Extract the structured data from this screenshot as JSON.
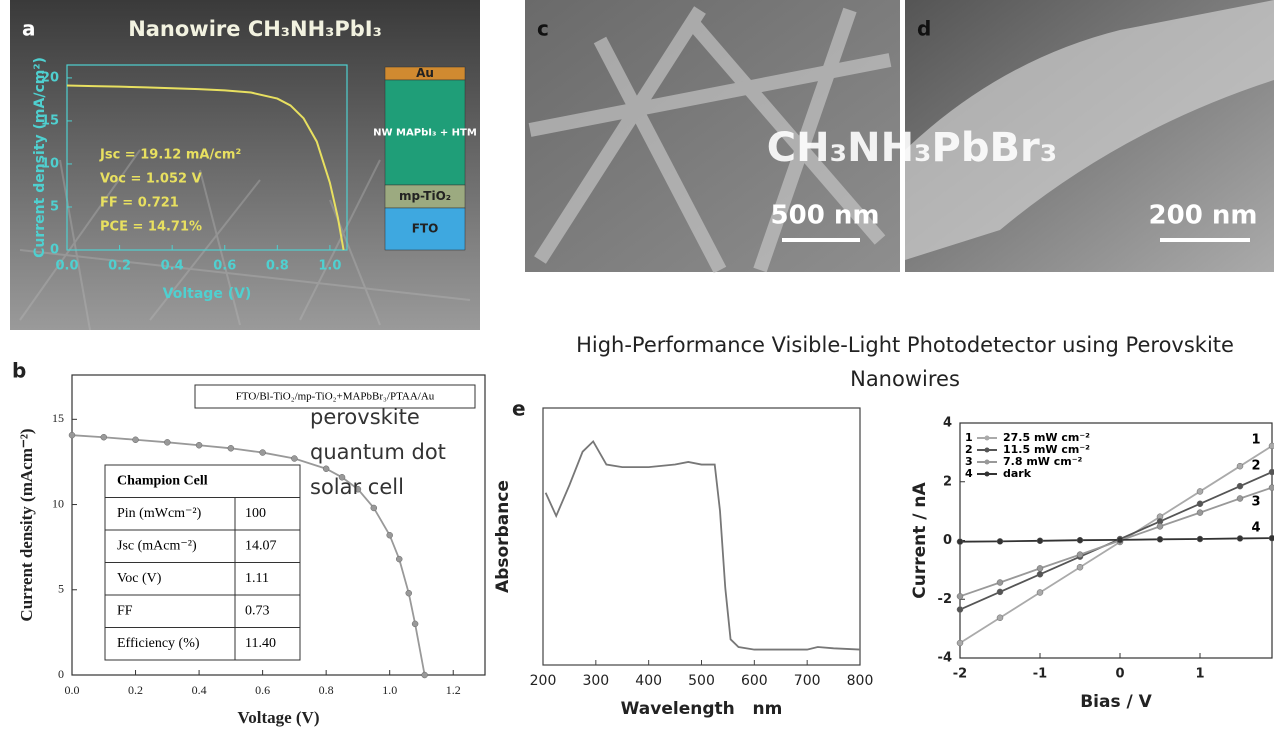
{
  "panel_labels": [
    "a",
    "b",
    "c",
    "d",
    "e"
  ],
  "images": {
    "compound": "CH₃NH₃PbBr₃",
    "scale_c": "500 nm",
    "scale_d": "200 nm"
  },
  "heading": "High-Performance Visible-Light Photodetector using Perovskite Nanowires",
  "chart_data": [
    {
      "type": "line",
      "title": "Nanowire CH₃NH₃PbI₃",
      "xlabel": "Voltage (V)",
      "ylabel": "Current density (mA/cm²)",
      "x": [
        0,
        0.1,
        0.2,
        0.3,
        0.4,
        0.5,
        0.6,
        0.7,
        0.8,
        0.85,
        0.9,
        0.95,
        1.0,
        1.03,
        1.052
      ],
      "values": [
        19.12,
        19.05,
        18.98,
        18.9,
        18.8,
        18.7,
        18.55,
        18.3,
        17.6,
        16.8,
        15.3,
        12.6,
        7.8,
        3.8,
        0
      ],
      "color": "#e8e060",
      "xlim": [
        0,
        1.065
      ],
      "ylim": [
        0,
        21.5
      ],
      "xticks": [
        {
          "value": 0,
          "label": "0.0"
        },
        {
          "value": 0.2,
          "label": "0.2"
        },
        {
          "value": 0.4,
          "label": "0.4"
        },
        {
          "value": 0.6,
          "label": "0.6"
        },
        {
          "value": 0.8,
          "label": "0.8"
        },
        {
          "value": 1,
          "label": "1.0"
        }
      ],
      "yticks": [
        0,
        5,
        10,
        15,
        20
      ],
      "annotations": [
        "Jsc = 19.12 mA/cm²",
        "Voc = 1.052 V",
        "FF = 0.721",
        "PCE = 14.71%"
      ],
      "layers": [
        "Au",
        "NW MAPbI₃ + HTM",
        "mp-TiO₂",
        "FTO"
      ]
    },
    {
      "type": "line",
      "xlabel": "Voltage (V)",
      "ylabel": "Current density (mAcm⁻²)",
      "x": [
        0,
        0.1,
        0.2,
        0.3,
        0.4,
        0.5,
        0.6,
        0.7,
        0.8,
        0.85,
        0.9,
        0.95,
        1.0,
        1.03,
        1.06,
        1.08,
        1.11
      ],
      "values": [
        14.07,
        13.95,
        13.8,
        13.65,
        13.48,
        13.3,
        13.05,
        12.7,
        12.1,
        11.6,
        10.9,
        9.8,
        8.2,
        6.8,
        4.8,
        3.0,
        0
      ],
      "color": "#999999",
      "markers": true,
      "xlim": [
        0,
        1.3
      ],
      "ylim": [
        0,
        17.6
      ],
      "xticks": [
        {
          "value": 0,
          "label": "0.0"
        },
        {
          "value": 0.2,
          "label": "0.2"
        },
        {
          "value": 0.4,
          "label": "0.4"
        },
        {
          "value": 0.6,
          "label": "0.6"
        },
        {
          "value": 0.8,
          "label": "0.8"
        },
        {
          "value": 1,
          "label": "1.0"
        },
        {
          "value": 1.2,
          "label": "1.2"
        }
      ],
      "yticks": [
        0,
        5,
        10,
        15
      ],
      "legend": "FTO/Bl-TiO₂/mp-TiO₂+MAPbBr₃/PTAA/Au",
      "annotation": "perovskite quantum dot solar cell",
      "table": {
        "title": "Champion Cell",
        "rows": [
          [
            "Pin (mWcm⁻²)",
            "100"
          ],
          [
            "Jsc (mAcm⁻²)",
            "14.07"
          ],
          [
            "Voc (V)",
            "1.11"
          ],
          [
            "FF",
            "0.73"
          ],
          [
            "Efficiency (%)",
            "11.40"
          ]
        ]
      }
    },
    {
      "type": "line",
      "xlabel": "Wavelength   nm",
      "ylabel": "Absorbance",
      "x": [
        205,
        225,
        250,
        275,
        295,
        320,
        350,
        400,
        450,
        475,
        500,
        525,
        535,
        545,
        555,
        570,
        600,
        700,
        720,
        750,
        800
      ],
      "values": [
        0.67,
        0.58,
        0.7,
        0.83,
        0.87,
        0.78,
        0.77,
        0.77,
        0.78,
        0.79,
        0.78,
        0.78,
        0.6,
        0.3,
        0.1,
        0.07,
        0.06,
        0.06,
        0.07,
        0.065,
        0.06
      ],
      "color": "#777777",
      "xlim": [
        200,
        800
      ],
      "ylim": [
        0,
        1
      ],
      "xticks": [
        200,
        300,
        400,
        500,
        600,
        700,
        800
      ]
    },
    {
      "type": "line",
      "xlabel": "Bias / V",
      "ylabel": "Current / nA",
      "x": [
        -2,
        -1.5,
        -1,
        -0.5,
        0,
        0.5,
        1,
        1.5,
        1.9
      ],
      "series": [
        {
          "number": "1",
          "name": "27.5 mW cm⁻²",
          "color": "#aaaaaa",
          "values": [
            -3.49,
            -2.63,
            -1.77,
            -0.91,
            -0.05,
            0.81,
            1.67,
            2.53,
            3.22
          ]
        },
        {
          "number": "2",
          "name": "11.5 mW cm⁻²",
          "color": "#555555",
          "values": [
            -2.35,
            -1.75,
            -1.15,
            -0.55,
            0.05,
            0.65,
            1.25,
            1.85,
            2.33
          ]
        },
        {
          "number": "3",
          "name": "7.8 mW cm⁻²",
          "color": "#999999",
          "values": [
            -1.9,
            -1.43,
            -0.95,
            -0.48,
            0,
            0.48,
            0.95,
            1.43,
            1.8
          ]
        },
        {
          "number": "4",
          "name": "dark",
          "color": "#333333",
          "values": [
            -0.04,
            -0.03,
            -0.01,
            0.01,
            0.02,
            0.04,
            0.05,
            0.07,
            0.08
          ]
        }
      ],
      "markers": true,
      "xlim": [
        -2,
        1.9
      ],
      "ylim": [
        -4,
        4
      ],
      "xticks": [
        -2,
        -1,
        0,
        1
      ],
      "yticks": [
        -4,
        -2,
        0,
        2,
        4
      ]
    }
  ]
}
